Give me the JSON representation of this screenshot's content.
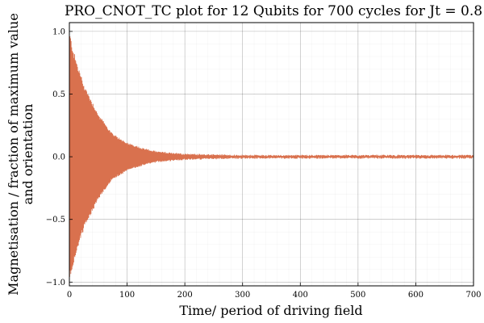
{
  "chart_data": {
    "type": "line",
    "title": "PRO_CNOT_TC plot for 12 Qubits for 700 cycles for Jt = 0.8",
    "xlabel": "Time/ period of driving field",
    "ylabel_lines": [
      "Magnetisation / fraction of maximum value",
      "and orientation"
    ],
    "xlim": [
      0,
      700
    ],
    "ylim": [
      -1.03,
      1.07
    ],
    "x_ticks": [
      0,
      100,
      200,
      300,
      400,
      500,
      600,
      700
    ],
    "x_tick_labels": [
      "0",
      "100",
      "200",
      "300",
      "400",
      "500",
      "600",
      "700"
    ],
    "y_ticks": [
      -1.0,
      -0.5,
      0.0,
      0.5,
      1.0
    ],
    "y_tick_labels": [
      "−1.0",
      "−0.5",
      "0.0",
      "0.5",
      "1.0"
    ],
    "grid": true,
    "minor_grid": true,
    "legend": "none",
    "series": [
      {
        "color": "#d9714e",
        "style": "alternating oscillation with decaying amplitude",
        "envelope": [
          {
            "x": 0,
            "amplitude": 1.0
          },
          {
            "x": 10,
            "amplitude": 0.8
          },
          {
            "x": 25,
            "amplitude": 0.58
          },
          {
            "x": 50,
            "amplitude": 0.34
          },
          {
            "x": 75,
            "amplitude": 0.18
          },
          {
            "x": 100,
            "amplitude": 0.11
          },
          {
            "x": 125,
            "amplitude": 0.07
          },
          {
            "x": 150,
            "amplitude": 0.04
          },
          {
            "x": 200,
            "amplitude": 0.02
          },
          {
            "x": 300,
            "amplitude": 0.01
          },
          {
            "x": 700,
            "amplitude": 0.01
          }
        ]
      }
    ]
  }
}
